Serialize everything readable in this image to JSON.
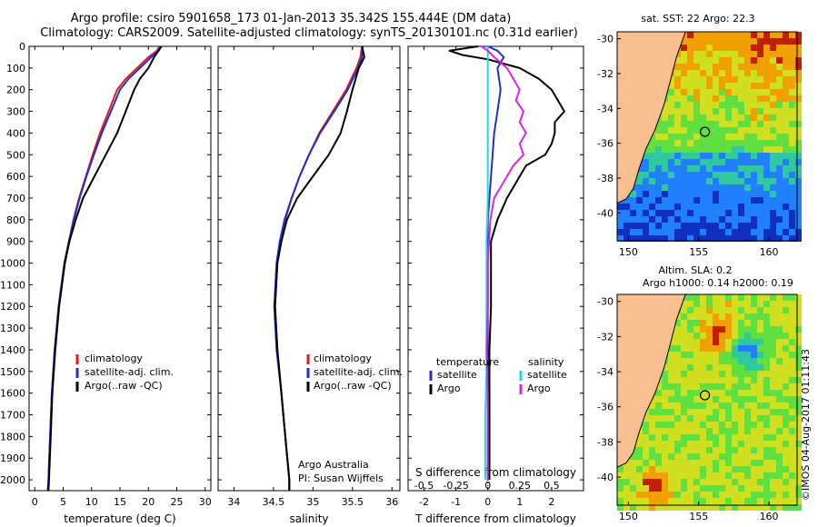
{
  "titles": {
    "line1": "Argo profile: csiro 5901658_173 01-Jan-2013 35.342S 155.444E (DM data)",
    "line2": "Climatology: CARS2009. Satellite-adjusted climatology: synTS_20130101.nc (0.31d earlier)"
  },
  "colors": {
    "climatology": "#e41a1c",
    "satellite": "#1f2fd0",
    "argo": "#000000",
    "satellite_s": "#22d8e0",
    "argo_s": "#e020e0",
    "land": "#f8c090"
  },
  "chart_data": [
    {
      "type": "line",
      "title": "",
      "xlabel": "temperature (deg C)",
      "ylabel": "",
      "xlim": [
        -1,
        31
      ],
      "ylim": [
        2050,
        0
      ],
      "xticks": [
        "0",
        "5",
        "10",
        "15",
        "20",
        "25",
        "30"
      ],
      "yticks": [
        "0",
        "100",
        "200",
        "300",
        "400",
        "500",
        "600",
        "700",
        "800",
        "900",
        "1000",
        "1100",
        "1200",
        "1300",
        "1400",
        "1500",
        "1600",
        "1700",
        "1800",
        "1900",
        "2000"
      ],
      "legend": [
        "climatology",
        "satellite-adj. clim.",
        "Argo(..raw -QC)"
      ],
      "series": [
        {
          "name": "climatology",
          "depth": [
            0,
            20,
            50,
            100,
            150,
            200,
            300,
            400,
            500,
            600,
            700,
            800,
            900,
            1000,
            1200,
            1400,
            1600,
            1800,
            2000,
            2050
          ],
          "values": [
            22,
            21.5,
            20,
            18,
            16,
            14.5,
            13,
            11.5,
            10.2,
            9,
            7.8,
            6.8,
            6,
            5.2,
            4.2,
            3.5,
            3,
            2.7,
            2.4,
            2.3
          ]
        },
        {
          "name": "satellite-adj. clim.",
          "depth": [
            0,
            20,
            50,
            100,
            150,
            200,
            300,
            400,
            500,
            600,
            700,
            800,
            900,
            1000,
            1200,
            1400,
            1600,
            1800,
            2000,
            2050
          ],
          "values": [
            22,
            21.8,
            20.5,
            18.5,
            16.5,
            15,
            13.4,
            11.8,
            10.4,
            9.1,
            7.9,
            6.9,
            6,
            5.2,
            4.2,
            3.5,
            3,
            2.7,
            2.4,
            2.3
          ]
        },
        {
          "name": "Argo(..raw -QC)",
          "depth": [
            0,
            20,
            50,
            100,
            150,
            200,
            300,
            400,
            500,
            600,
            700,
            800,
            900,
            1000,
            1200,
            1400,
            1600,
            1800,
            2000,
            2050
          ],
          "values": [
            22.3,
            21.8,
            21,
            20,
            18.5,
            17.5,
            16,
            14.5,
            12.5,
            10.5,
            8.5,
            7.2,
            6.1,
            5.3,
            4.3,
            3.6,
            3.1,
            2.8,
            2.5,
            2.4
          ]
        }
      ]
    },
    {
      "type": "line",
      "title": "",
      "xlabel": "salinity",
      "ylabel": "",
      "xlim": [
        33.8,
        36.1
      ],
      "ylim": [
        2050,
        0
      ],
      "xticks": [
        "34",
        "34.5",
        "35",
        "35.5",
        "36"
      ],
      "legend": [
        "climatology",
        "satellite-adj. clim.",
        "Argo(..raw -QC)"
      ],
      "annotation": [
        "Argo Australia",
        "PI: Susan Wijffels"
      ],
      "series": [
        {
          "name": "climatology",
          "depth": [
            0,
            50,
            100,
            200,
            300,
            400,
            500,
            600,
            700,
            800,
            900,
            1000,
            1200,
            1400,
            1600,
            1800,
            2000,
            2050
          ],
          "values": [
            35.62,
            35.6,
            35.55,
            35.42,
            35.25,
            35.08,
            34.95,
            34.83,
            34.73,
            34.65,
            34.59,
            34.55,
            34.52,
            34.55,
            34.6,
            34.65,
            34.7,
            34.7
          ]
        },
        {
          "name": "satellite-adj. clim.",
          "depth": [
            0,
            50,
            100,
            200,
            300,
            400,
            500,
            600,
            700,
            800,
            900,
            1000,
            1200,
            1400,
            1600,
            1800,
            2000,
            2050
          ],
          "values": [
            35.63,
            35.62,
            35.57,
            35.44,
            35.27,
            35.09,
            34.95,
            34.83,
            34.73,
            34.64,
            34.58,
            34.54,
            34.51,
            34.54,
            34.6,
            34.65,
            34.7,
            34.7
          ]
        },
        {
          "name": "Argo(..raw -QC)",
          "depth": [
            0,
            50,
            100,
            200,
            300,
            400,
            500,
            600,
            700,
            800,
            900,
            1000,
            1200,
            1400,
            1600,
            1800,
            2000,
            2050
          ],
          "values": [
            35.62,
            35.65,
            35.58,
            35.5,
            35.43,
            35.35,
            35.2,
            35.0,
            34.8,
            34.67,
            34.6,
            34.55,
            34.52,
            34.55,
            34.6,
            34.65,
            34.7,
            34.7
          ]
        }
      ]
    },
    {
      "type": "line",
      "title": "",
      "xlabel": "T difference from climatology",
      "top_xlabel": "S difference from climatology",
      "xlim": [
        -2.5,
        3
      ],
      "xticks": [
        "-2",
        "-1",
        "0",
        "1",
        "2"
      ],
      "top_xticks": [
        "-0.5",
        "-0.25",
        "0",
        "0.25",
        "0.5"
      ],
      "ylim": [
        2050,
        0
      ],
      "legend_titles": [
        "temperature",
        "salinity"
      ],
      "legend": [
        "satellite",
        "Argo",
        "satellite",
        "Argo"
      ],
      "series": [
        {
          "name": "temperature satellite",
          "depth": [
            0,
            20,
            50,
            100,
            200,
            300,
            400,
            500,
            600,
            700,
            800,
            900,
            1000,
            1200,
            1400,
            1600,
            1800,
            2000
          ],
          "values": [
            0,
            0.3,
            0.5,
            0.3,
            0.4,
            0.3,
            0.2,
            0.15,
            0.1,
            0.05,
            0,
            0,
            0,
            0,
            0,
            0,
            0,
            0
          ]
        },
        {
          "name": "temperature Argo",
          "depth": [
            0,
            20,
            40,
            60,
            80,
            100,
            150,
            200,
            250,
            300,
            350,
            400,
            450,
            500,
            550,
            600,
            700,
            800,
            900,
            1000,
            1200,
            1400,
            1600,
            1800,
            2000
          ],
          "values": [
            -0.3,
            -1.2,
            -0.8,
            0,
            0.5,
            1,
            1.6,
            2,
            2.2,
            2.4,
            2.1,
            2.1,
            2,
            1.8,
            1.2,
            1,
            0.6,
            0.3,
            0.1,
            0.1,
            0.1,
            0.05,
            0.05,
            0.05,
            0.05
          ]
        },
        {
          "name": "salinity satellite",
          "depth": [
            0,
            100,
            200,
            300,
            500,
            700,
            900,
            1100,
            1300,
            1500,
            1700,
            1900,
            2000
          ],
          "values": [
            0,
            0,
            0,
            0,
            0,
            0,
            -0.01,
            -0.01,
            -0.01,
            -0.01,
            -0.02,
            -0.02,
            -0.02
          ]
        },
        {
          "name": "salinity Argo",
          "depth": [
            0,
            20,
            50,
            100,
            150,
            200,
            250,
            300,
            350,
            400,
            450,
            500,
            550,
            600,
            700,
            800,
            900,
            1000,
            1200,
            1400,
            1600,
            1800,
            2000
          ],
          "values": [
            -0.05,
            0,
            0.05,
            0.15,
            0.2,
            0.25,
            0.22,
            0.28,
            0.25,
            0.3,
            0.25,
            0.28,
            0.2,
            0.15,
            0.05,
            0.02,
            0.01,
            0,
            0,
            -0.01,
            0,
            0,
            0
          ]
        }
      ]
    },
    {
      "type": "heatmap",
      "title": "sat. SST: 22 Argo: 22.3",
      "xticks": [
        "150",
        "155",
        "160"
      ],
      "yticks": [
        "-30",
        "-32",
        "-34",
        "-36",
        "-38",
        "-40"
      ],
      "marker": {
        "lon": 155.444,
        "lat": -35.342
      }
    },
    {
      "type": "heatmap",
      "title": "Altim. SLA: 0.2",
      "subtitle": "Argo h1000: 0.14 h2000: 0.19",
      "xticks": [
        "150",
        "155",
        "160"
      ],
      "yticks": [
        "-30",
        "-32",
        "-34",
        "-36",
        "-38",
        "-40"
      ],
      "marker": {
        "lon": 155.444,
        "lat": -35.342
      }
    }
  ],
  "footer": "©IMOS 04-Aug-2017 01:11:43"
}
